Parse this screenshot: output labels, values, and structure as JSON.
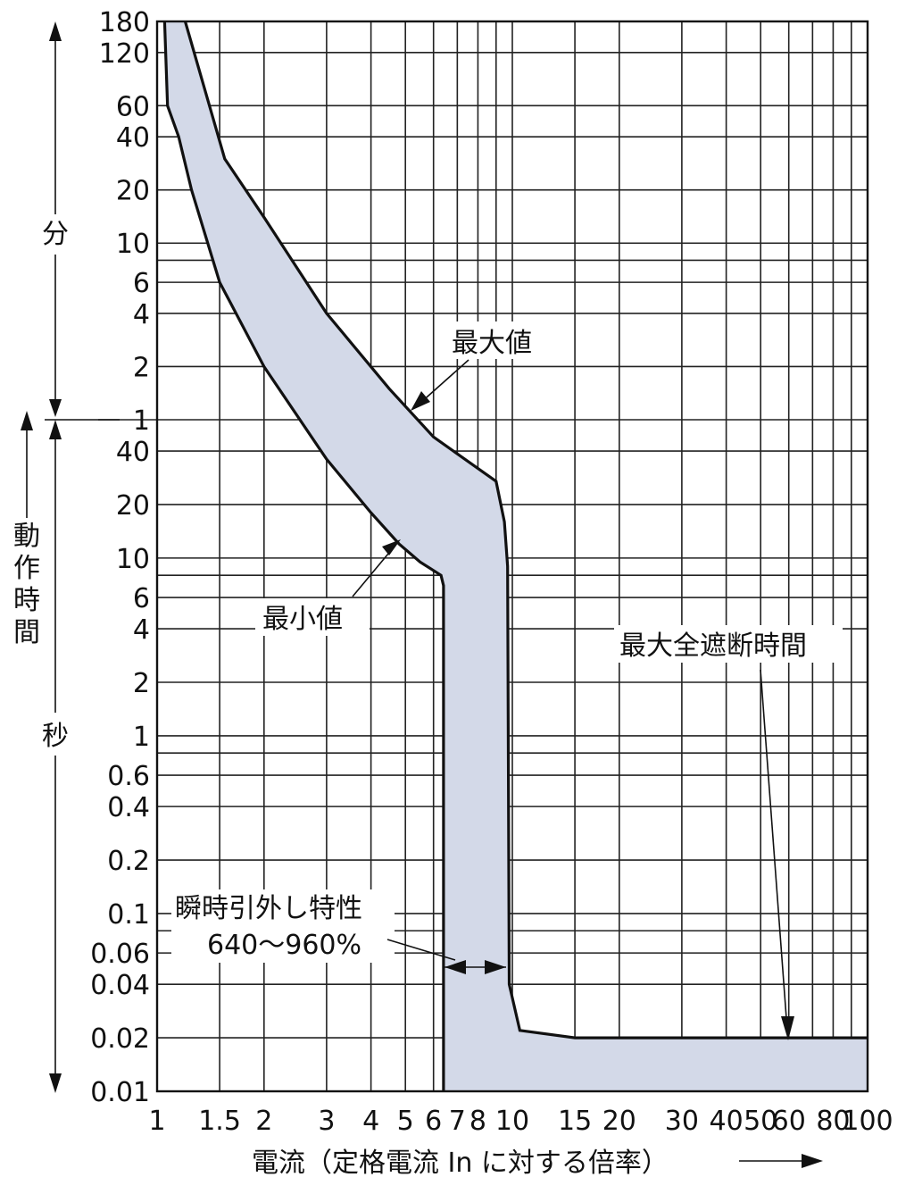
{
  "chart_data": {
    "type": "area",
    "xlabel": "電流（定格電流 In に対する倍率）",
    "x_scale": "log",
    "xlim": [
      1,
      100
    ],
    "x_ticks": [
      "1",
      "1.5",
      "2",
      "3",
      "4",
      "5",
      "6",
      "7",
      "8",
      "10",
      "15",
      "20",
      "30",
      "40",
      "50",
      "60",
      "80",
      "100"
    ],
    "y_scale": "log (time)",
    "y_ticks_minutes": [
      "180",
      "120",
      "60",
      "40",
      "20",
      "10",
      "6",
      "4",
      "2",
      "1"
    ],
    "y_ticks_seconds": [
      "40",
      "20",
      "10",
      "6",
      "4",
      "2",
      "1",
      "0.6",
      "0.4",
      "0.2",
      "0.1",
      "0.06",
      "0.04",
      "0.02",
      "0.01"
    ],
    "y_unit_minutes": "分",
    "y_unit_seconds": "秒",
    "ylabel": "動作時間",
    "grid": true,
    "series": [
      {
        "name": "最大値",
        "points": [
          [
            1.2,
            10800
          ],
          [
            1.55,
            1800
          ],
          [
            2,
            840
          ],
          [
            3,
            240
          ],
          [
            4.5,
            90
          ],
          [
            6,
            48
          ],
          [
            9,
            27
          ],
          [
            9.5,
            16
          ],
          [
            9.7,
            9
          ],
          [
            9.8,
            0.04
          ],
          [
            10.5,
            0.022
          ],
          [
            15,
            0.02
          ],
          [
            100,
            0.02
          ]
        ]
      },
      {
        "name": "最小値",
        "points": [
          [
            1.05,
            10800
          ],
          [
            1.07,
            3600
          ],
          [
            1.15,
            2400
          ],
          [
            1.25,
            1200
          ],
          [
            1.5,
            360
          ],
          [
            2,
            120
          ],
          [
            3,
            36
          ],
          [
            4,
            18
          ],
          [
            4.8,
            12
          ],
          [
            5.5,
            9.5
          ],
          [
            6.3,
            8
          ],
          [
            6.4,
            7
          ],
          [
            6.4,
            0.01
          ]
        ]
      }
    ],
    "annotations": [
      "最大値",
      "最小値",
      "最大全遮断時間",
      "瞬時引外し特性",
      "640〜960%"
    ]
  }
}
